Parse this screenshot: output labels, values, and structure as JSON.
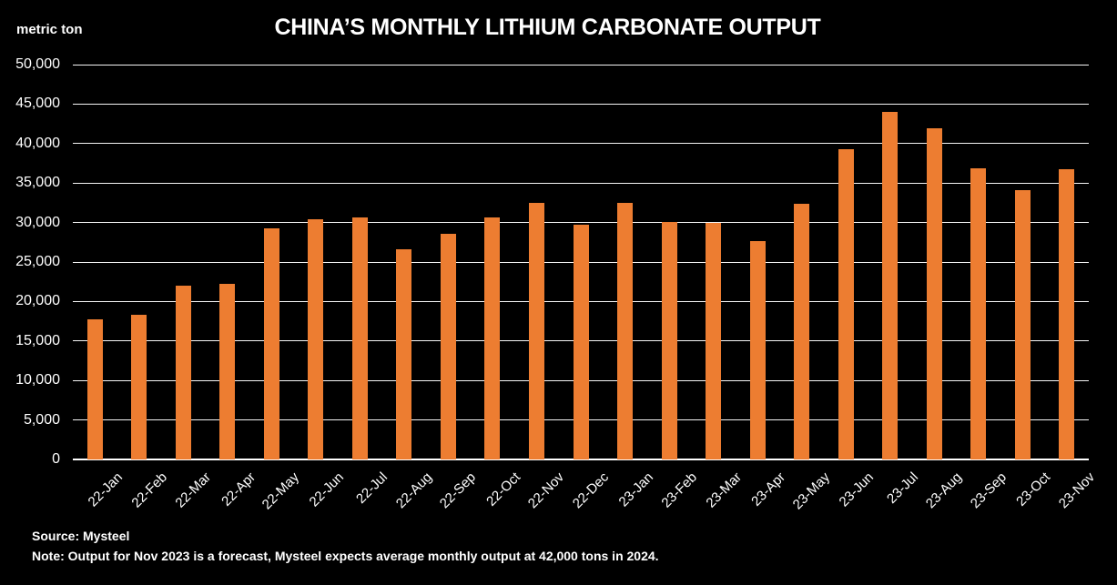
{
  "header": {
    "unit_label": "metric ton",
    "title": "CHINA’S MONTHLY LITHIUM CARBONATE OUTPUT"
  },
  "footer": {
    "source": "Source: Mysteel",
    "note": "Note: Output for Nov 2023 is a forecast, Mysteel expects average monthly output at 42,000 tons in 2024."
  },
  "chart_data": {
    "type": "bar",
    "title": "CHINA’S MONTHLY LITHIUM CARBONATE OUTPUT",
    "ylabel": "metric ton",
    "xlabel": "",
    "categories": [
      "22-Jan",
      "22-Feb",
      "22-Mar",
      "22-Apr",
      "22-May",
      "22-Jun",
      "22-Jul",
      "22-Aug",
      "22-Sep",
      "22-Oct",
      "22-Nov",
      "22-Dec",
      "23-Jan",
      "23-Feb",
      "23-Mar",
      "23-Apr",
      "23-May",
      "23-Jun",
      "23-Jul",
      "23-Aug",
      "23-Sep",
      "23-Oct",
      "23-Nov"
    ],
    "values": [
      17700,
      18300,
      22000,
      22200,
      29300,
      30400,
      30600,
      26600,
      28600,
      30600,
      32500,
      29700,
      32500,
      30100,
      30000,
      27700,
      32400,
      39300,
      44000,
      41900,
      36900,
      34100,
      36700
    ],
    "ylim": [
      0,
      50000
    ],
    "ytick_step": 5000,
    "ytick_labels": [
      "0",
      "5,000",
      "10,000",
      "15,000",
      "20,000",
      "25,000",
      "30,000",
      "35,000",
      "40,000",
      "45,000",
      "50,000"
    ],
    "grid": true,
    "legend": false,
    "bar_color": "#ED7D31",
    "background_color": "#000000",
    "text_color": "#FFFFFF",
    "gridline_color": "#FFFFFF"
  }
}
